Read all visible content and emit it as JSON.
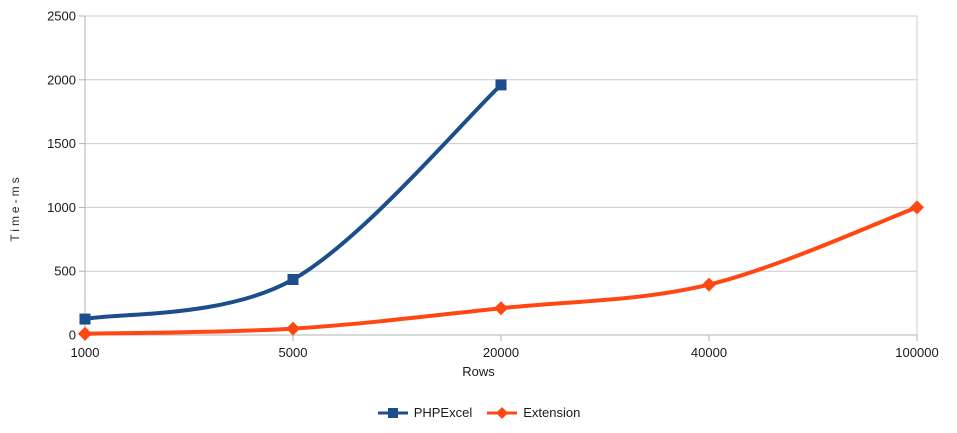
{
  "chart_data": {
    "type": "line",
    "title": "",
    "xlabel": "Rows",
    "ylabel": "Time-ms",
    "categories": [
      "1000",
      "5000",
      "20000",
      "40000",
      "100000"
    ],
    "y_ticks": [
      0,
      500,
      1000,
      1500,
      2000,
      2500
    ],
    "ylim": [
      0,
      2500
    ],
    "grid": "horizontal-only",
    "line_style": "smooth",
    "legend_position": "bottom-center",
    "series": [
      {
        "name": "PHPExcel",
        "color": "#1b4e8a",
        "marker": "square",
        "values": [
          125,
          435,
          1960,
          null,
          null
        ]
      },
      {
        "name": "Extension",
        "color": "#ff4713",
        "marker": "diamond",
        "values": [
          10,
          50,
          210,
          395,
          1000
        ]
      }
    ],
    "colors": {
      "gridline": "#cccccc",
      "axis": "#b3b3b3",
      "tick_text": "#1a1a1a",
      "background": "#ffffff"
    }
  }
}
